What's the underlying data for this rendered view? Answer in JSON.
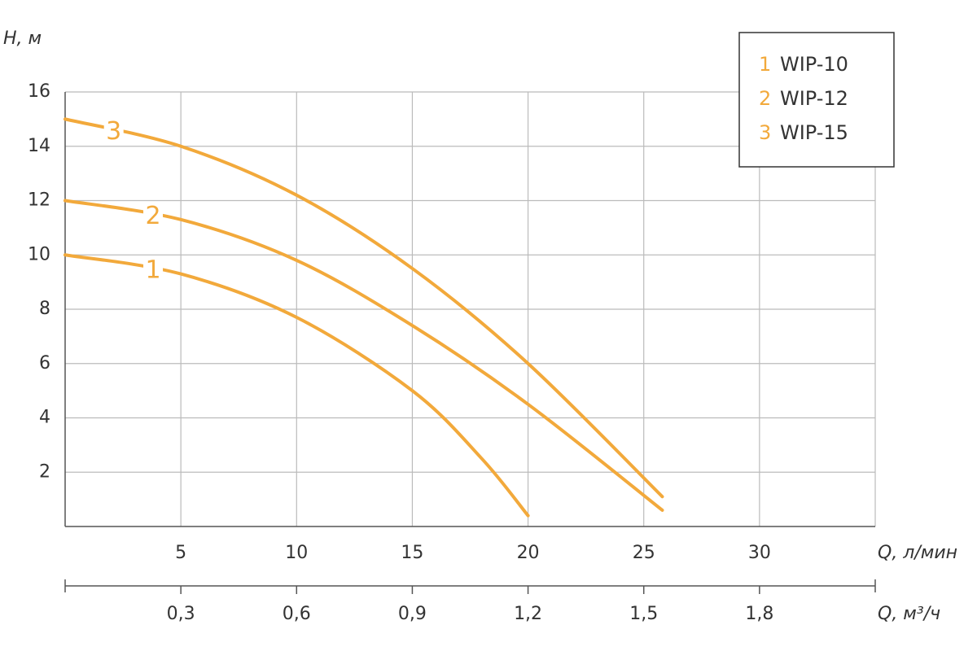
{
  "chart_data": {
    "type": "line",
    "y_label": "H, м",
    "x_label": "Q, л/мин",
    "x2_label": "Q, м³/ч",
    "xlim": [
      0,
      35
    ],
    "xticks": [
      5,
      10,
      15,
      20,
      25,
      30
    ],
    "x2lim": [
      0,
      2.1
    ],
    "x2ticks": [
      {
        "value": 0.3,
        "label": "0,3"
      },
      {
        "value": 0.6,
        "label": "0,6"
      },
      {
        "value": 0.9,
        "label": "0,9"
      },
      {
        "value": 1.2,
        "label": "1,2"
      },
      {
        "value": 1.5,
        "label": "1,5"
      },
      {
        "value": 1.8,
        "label": "1,8"
      }
    ],
    "ylim": [
      0,
      16
    ],
    "yticks": [
      2,
      4,
      6,
      8,
      10,
      12,
      14,
      16
    ],
    "grid": true,
    "legend": "top-right",
    "series": [
      {
        "name": "WIP-10",
        "label": "1",
        "color": "#f2a93b",
        "x": [
          0,
          5,
          10,
          15,
          18,
          20
        ],
        "values": [
          10,
          9.3,
          7.7,
          5,
          2.5,
          0.4
        ]
      },
      {
        "name": "WIP-12",
        "label": "2",
        "color": "#f2a93b",
        "x": [
          0,
          5,
          10,
          15,
          20,
          25.8
        ],
        "values": [
          12,
          11.3,
          9.8,
          7.4,
          4.5,
          0.6
        ]
      },
      {
        "name": "WIP-15",
        "label": "3",
        "color": "#f2a93b",
        "x": [
          0,
          5,
          10,
          15,
          20,
          25.8
        ],
        "values": [
          15,
          14,
          12.2,
          9.5,
          6,
          1.1
        ]
      }
    ]
  }
}
